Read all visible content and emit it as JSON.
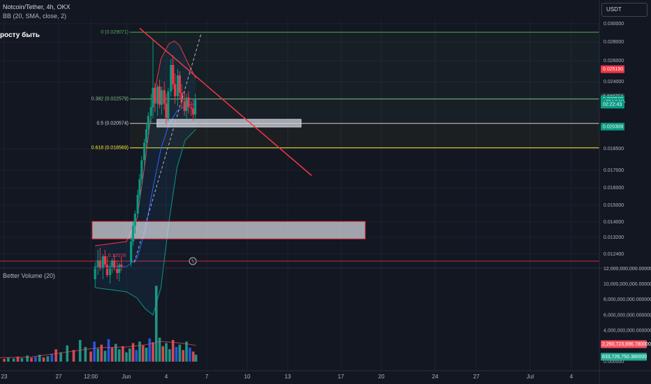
{
  "header": {
    "title": "Notcoin/Tether, 4h, OKX",
    "indicator": "BB (20, SMA, close, 2)",
    "note": "росту быть",
    "currency": "USDT"
  },
  "volume_panel": {
    "title": "Better Volume (20)"
  },
  "chart_data": {
    "type": "candlestick",
    "price_axis": {
      "ticks": [
        "0.030000",
        "0.028000",
        "0.026000",
        "0.024000",
        "0.018500",
        "0.017000",
        "0.016000",
        "0.015000",
        "0.014000",
        "0.013200",
        "0.012400"
      ],
      "tick_values": [
        0.03,
        0.028,
        0.026,
        0.024,
        0.0185,
        0.017,
        0.016,
        0.015,
        0.014,
        0.0132,
        0.0124
      ]
    },
    "price_badges": [
      {
        "label": "0.025190",
        "value": 0.02519,
        "color": "#f23645"
      },
      {
        "label": "0.022750",
        "value": 0.02275,
        "color": "#2a2e39"
      },
      {
        "label": "0.022560",
        "value": 0.02256,
        "color": "#089981"
      },
      {
        "label": "+324.54%",
        "value": 0.02233,
        "color": "#089981"
      },
      {
        "label": "02:22:43",
        "value": 0.02212,
        "color": "#089981"
      },
      {
        "label": "0.020309",
        "value": 0.02031,
        "color": "#089981"
      }
    ],
    "fib_levels": [
      {
        "label": "0 (0.029071)",
        "value": 0.029071,
        "color": "#4caf50"
      },
      {
        "label": "0.382 (0.022579)",
        "value": 0.022579,
        "color": "#81c784"
      },
      {
        "label": "0.5 (0.020574)",
        "value": 0.020574,
        "color": "#d1d4dc"
      },
      {
        "label": "0.618 (0.018569)",
        "value": 0.018569,
        "color": "#ffeb3b"
      }
    ],
    "fib_partial_label": "0.12078",
    "time_axis": {
      "ticks": [
        "23",
        "27",
        "12:00",
        "Jun",
        "4",
        "7",
        "10",
        "13",
        "17",
        "20",
        "24",
        "27",
        "Jul",
        "4"
      ],
      "tick_days": [
        -8,
        -4,
        -2.5,
        0,
        3,
        6,
        9,
        12,
        16,
        19,
        23,
        26,
        30,
        33
      ]
    },
    "candles": [
      [
        -2.2,
        0.0112,
        0.012,
        0.0108,
        0.0118
      ],
      [
        -2.0,
        0.0118,
        0.0126,
        0.0114,
        0.0121
      ],
      [
        -1.85,
        0.0121,
        0.0127,
        0.0116,
        0.0117
      ],
      [
        -1.65,
        0.0117,
        0.0124,
        0.0112,
        0.0123
      ],
      [
        -1.5,
        0.0123,
        0.0126,
        0.0118,
        0.0119
      ],
      [
        -1.35,
        0.0119,
        0.0123,
        0.0113,
        0.0114
      ],
      [
        -1.15,
        0.0114,
        0.012,
        0.011,
        0.0118
      ],
      [
        -1.0,
        0.0118,
        0.0122,
        0.0115,
        0.0121
      ],
      [
        -0.85,
        0.0121,
        0.0124,
        0.0116,
        0.0117
      ],
      [
        -0.65,
        0.0117,
        0.0121,
        0.0112,
        0.0115
      ],
      [
        -0.5,
        0.0115,
        0.012,
        0.0111,
        0.0119
      ],
      [
        -0.35,
        0.0119,
        0.0123,
        0.0116,
        0.0118
      ],
      [
        0.35,
        0.012,
        0.0132,
        0.0118,
        0.013
      ],
      [
        0.5,
        0.013,
        0.014,
        0.0128,
        0.0138
      ],
      [
        0.65,
        0.0138,
        0.0147,
        0.0134,
        0.0145
      ],
      [
        0.85,
        0.0145,
        0.0159,
        0.0143,
        0.0156
      ],
      [
        1.0,
        0.0156,
        0.0168,
        0.0152,
        0.0165
      ],
      [
        1.15,
        0.0165,
        0.018,
        0.0162,
        0.0177
      ],
      [
        1.35,
        0.0177,
        0.0193,
        0.0172,
        0.019
      ],
      [
        1.5,
        0.019,
        0.0205,
        0.0186,
        0.0201
      ],
      [
        1.65,
        0.0201,
        0.0215,
        0.0196,
        0.0212
      ],
      [
        1.85,
        0.0212,
        0.023,
        0.0205,
        0.0219
      ],
      [
        2.0,
        0.0219,
        0.0282,
        0.021,
        0.0235
      ],
      [
        2.15,
        0.0235,
        0.0239,
        0.0215,
        0.0222
      ],
      [
        2.35,
        0.0222,
        0.0238,
        0.0212,
        0.0236
      ],
      [
        2.5,
        0.0236,
        0.0242,
        0.0218,
        0.0221
      ],
      [
        2.65,
        0.0221,
        0.0236,
        0.0213,
        0.0233
      ],
      [
        2.85,
        0.0233,
        0.024,
        0.0217,
        0.0222
      ],
      [
        3.0,
        0.0222,
        0.023,
        0.0205,
        0.021
      ],
      [
        3.15,
        0.021,
        0.0235,
        0.0208,
        0.0232
      ],
      [
        3.35,
        0.0232,
        0.0262,
        0.0228,
        0.0256
      ],
      [
        3.5,
        0.0256,
        0.0266,
        0.0234,
        0.0238
      ],
      [
        3.65,
        0.0238,
        0.0248,
        0.0222,
        0.0228
      ],
      [
        3.85,
        0.0228,
        0.0252,
        0.022,
        0.0246
      ],
      [
        4.0,
        0.0246,
        0.025,
        0.0226,
        0.0231
      ],
      [
        4.15,
        0.0231,
        0.0238,
        0.0218,
        0.0224
      ],
      [
        4.35,
        0.0224,
        0.0232,
        0.0212,
        0.0216
      ],
      [
        4.5,
        0.0216,
        0.023,
        0.021,
        0.0227
      ],
      [
        4.65,
        0.0227,
        0.0232,
        0.0214,
        0.0219
      ],
      [
        4.85,
        0.0219,
        0.0224,
        0.0212,
        0.0218
      ],
      [
        5.0,
        0.0218,
        0.0226,
        0.0208,
        0.0213
      ],
      [
        5.15,
        0.0213,
        0.023,
        0.021,
        0.0226
      ]
    ],
    "bollinger": {
      "upper": [
        [
          -2.2,
          0.0128
        ],
        [
          0,
          0.013
        ],
        [
          0.8,
          0.0142
        ],
        [
          1.4,
          0.0175
        ],
        [
          2.0,
          0.0225
        ],
        [
          2.6,
          0.0262
        ],
        [
          3.2,
          0.0278
        ],
        [
          3.6,
          0.0281
        ],
        [
          4.0,
          0.0276
        ],
        [
          4.6,
          0.0258
        ],
        [
          5.2,
          0.0243
        ]
      ],
      "middle": [
        [
          -2.2,
          0.0118
        ],
        [
          0,
          0.0118
        ],
        [
          0.8,
          0.0122
        ],
        [
          1.4,
          0.0135
        ],
        [
          2.0,
          0.016
        ],
        [
          2.6,
          0.0185
        ],
        [
          3.2,
          0.0205
        ],
        [
          3.8,
          0.0216
        ],
        [
          4.4,
          0.022
        ],
        [
          5.2,
          0.0222
        ]
      ],
      "lower": [
        [
          -2.2,
          0.0108
        ],
        [
          0,
          0.0106
        ],
        [
          0.8,
          0.0103
        ],
        [
          1.4,
          0.0098
        ],
        [
          2.0,
          0.0095
        ],
        [
          2.6,
          0.0108
        ],
        [
          3.2,
          0.014
        ],
        [
          3.8,
          0.0172
        ],
        [
          4.4,
          0.0192
        ],
        [
          5.2,
          0.0201
        ]
      ]
    },
    "trendlines": [
      {
        "name": "downtrend",
        "color": "#f23645",
        "from": [
          1.0,
          0.0295
        ],
        "to": [
          13.8,
          0.0167
        ]
      },
      {
        "name": "dashed-uptrend",
        "color": "#b2b5be",
        "dashed": true,
        "from": [
          0.6,
          0.012
        ],
        "to": [
          5.6,
          0.029
        ]
      }
    ],
    "zones": [
      {
        "from_day": 2.3,
        "to_day": 13.0,
        "high": 0.02091,
        "low": 0.02028,
        "color": "#d1d4dc"
      },
      {
        "from_day": -2.4,
        "to_day": 17.8,
        "high": 0.01403,
        "low": 0.01313,
        "color": "#f23645"
      }
    ],
    "volume_axis": {
      "ticks": [
        "12,000,000,000.000000",
        "10,000,000,000.000000",
        "8,000,000,000.000000",
        "6,000,000,000.000000",
        "4,000,000,000.000000",
        "0.000000"
      ],
      "tick_values": [
        12000000000,
        10000000000,
        8000000000,
        6000000000,
        4000000000,
        0
      ]
    },
    "volume_badges": [
      {
        "label": "2,260,723,696.780000",
        "value": 2260723696.78,
        "color": "#f7525f"
      },
      {
        "label": "633,726,750.380000",
        "value": 633726750.38,
        "color": "#22ab94"
      }
    ],
    "volume_bars": [
      [
        -8.4,
        0.55
      ],
      [
        -8.0,
        0.35
      ],
      [
        -7.7,
        0.5
      ],
      [
        -7.3,
        0.4
      ],
      [
        -7.0,
        0.65
      ],
      [
        -6.7,
        0.45
      ],
      [
        -6.3,
        0.8
      ],
      [
        -6.0,
        0.5
      ],
      [
        -5.7,
        0.6
      ],
      [
        -5.4,
        0.9
      ],
      [
        -5.1,
        0.55
      ],
      [
        -4.8,
        0.7
      ],
      [
        -4.5,
        1.0
      ],
      [
        -4.2,
        1.6
      ],
      [
        -3.9,
        1.2
      ],
      [
        -3.6,
        2.1
      ],
      [
        -3.3,
        1.5
      ],
      [
        -3.0,
        2.8
      ],
      [
        -2.75,
        1.9
      ],
      [
        -2.5,
        1.3
      ],
      [
        -2.25,
        2.6
      ],
      [
        -2.0,
        1.7
      ],
      [
        -1.75,
        2.2
      ],
      [
        -1.5,
        1.4
      ],
      [
        -1.25,
        2.9
      ],
      [
        -1.0,
        1.8
      ],
      [
        -0.75,
        2.3
      ],
      [
        -0.5,
        1.6
      ],
      [
        -0.25,
        2.0
      ],
      [
        0.0,
        1.2
      ],
      [
        0.25,
        1.7
      ],
      [
        0.5,
        2.4
      ],
      [
        0.75,
        1.5
      ],
      [
        1.0,
        2.6
      ],
      [
        1.25,
        2.1
      ],
      [
        1.5,
        1.8
      ],
      [
        1.75,
        3.0
      ],
      [
        2.0,
        2.5
      ],
      [
        2.25,
        9.8
      ],
      [
        2.5,
        3.1
      ],
      [
        2.75,
        2.0
      ],
      [
        3.0,
        2.4
      ],
      [
        3.25,
        1.6
      ],
      [
        3.5,
        2.8
      ],
      [
        3.75,
        1.9
      ],
      [
        4.0,
        2.2
      ],
      [
        4.25,
        1.5
      ],
      [
        4.5,
        2.6
      ],
      [
        4.75,
        1.8
      ],
      [
        5.0,
        1.3
      ],
      [
        5.2,
        0.9
      ]
    ],
    "volume_avg": [
      [
        -8.4,
        0.5
      ],
      [
        -6,
        0.6
      ],
      [
        -4,
        1.1
      ],
      [
        -2,
        1.8
      ],
      [
        0,
        1.9
      ],
      [
        1.5,
        2.2
      ],
      [
        2.5,
        2.6
      ],
      [
        3.5,
        2.5
      ],
      [
        4.5,
        2.3
      ],
      [
        5.2,
        2.1
      ]
    ]
  }
}
